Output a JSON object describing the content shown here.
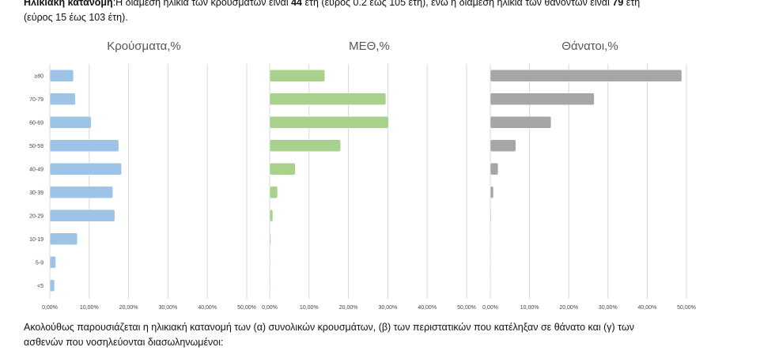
{
  "intro": {
    "label": "Ηλικιακή κατανομή",
    "text_a": ":Η διάμεση ηλικία των κρουσμάτων είναι ",
    "median_cases": "44",
    "text_b": " έτη (εύρος 0.2 έως 105 έτη), ενώ η διάμεση ηλικία των θανόντων είναι ",
    "median_deaths": "79",
    "text_c": " έτη",
    "line2": "(εύρος 15 έως 103 έτη)."
  },
  "outro": {
    "line1": "Ακολούθως παρουσιάζεται η ηλικιακή κατανομή των (α) συνολικών κρουσμάτων, (β) των περιστατικών που κατέληξαν σε θάνατο και (γ) των",
    "line2": "ασθενών που νοσηλεύονται διασωληνωμένοι:"
  },
  "chart_data": [
    {
      "type": "bar",
      "orientation": "horizontal",
      "title": "Κρούσματα,%",
      "categories": [
        "≥80",
        "70-79",
        "60-69",
        "50-59",
        "40-49",
        "30-39",
        "20-29",
        "10-19",
        "5-9",
        "<5"
      ],
      "values": [
        6.0,
        6.5,
        10.5,
        17.5,
        18.2,
        16.0,
        16.5,
        7.0,
        1.5,
        1.2
      ],
      "xlim": [
        0,
        50
      ],
      "xticks": [
        "0,00%",
        "10,00%",
        "20,00%",
        "30,00%",
        "40,00%",
        "50,00%"
      ],
      "color": "#9dc3e6",
      "grid": true
    },
    {
      "type": "bar",
      "orientation": "horizontal",
      "title": "ΜΕΘ,%",
      "categories": [
        "≥80",
        "70-79",
        "60-69",
        "50-59",
        "40-49",
        "30-39",
        "20-29",
        "10-19",
        "5-9",
        "<5"
      ],
      "values": [
        14.0,
        29.5,
        30.2,
        18.0,
        6.5,
        2.0,
        0.8,
        0.3,
        0.2,
        0.2
      ],
      "xlim": [
        0,
        50
      ],
      "xticks": [
        "0,00%",
        "10,00%",
        "20,00%",
        "30,00%",
        "40,00%",
        "50,00%"
      ],
      "color": "#a9d18e",
      "grid": true
    },
    {
      "type": "bar",
      "orientation": "horizontal",
      "title": "Θάνατοι,%",
      "categories": [
        "≥80",
        "70-79",
        "60-69",
        "50-59",
        "40-49",
        "30-39",
        "20-29",
        "10-19",
        "5-9",
        "<5"
      ],
      "values": [
        48.8,
        26.5,
        15.5,
        6.5,
        2.0,
        0.8,
        0.2,
        0.1,
        0.0,
        0.0
      ],
      "xlim": [
        0,
        50
      ],
      "xticks": [
        "0,00%",
        "10,00%",
        "20,00%",
        "30,00%",
        "40,00%",
        "50,00%"
      ],
      "color": "#a6a6a6",
      "grid": true
    }
  ]
}
